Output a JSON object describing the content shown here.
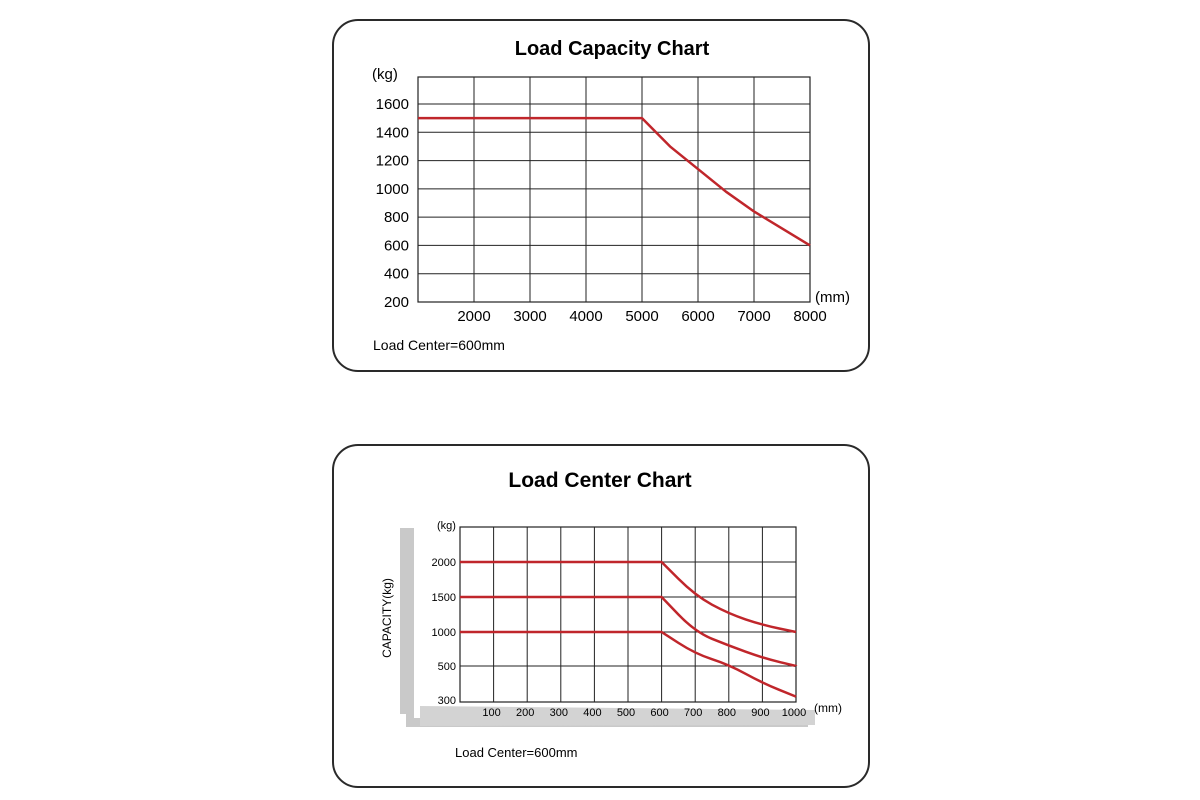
{
  "chart_data": [
    {
      "type": "line",
      "title": "Load Capacity Chart",
      "ylabel": "(kg)",
      "xlabel": "(mm)",
      "note": "Load Center=600mm",
      "x_ticks": [
        2000,
        3000,
        4000,
        5000,
        6000,
        7000,
        8000
      ],
      "y_ticks": [
        200,
        400,
        600,
        800,
        1000,
        1200,
        1400,
        1600
      ],
      "xlim": [
        1000,
        8000
      ],
      "ylim": [
        200,
        1600
      ],
      "grid": true,
      "series": [
        {
          "x": [
            1000,
            5000,
            5500,
            6000,
            6500,
            7000,
            7500,
            8000
          ],
          "y": [
            1500,
            1500,
            1300,
            1140,
            980,
            840,
            720,
            600
          ],
          "color": "#c0262b"
        }
      ]
    },
    {
      "type": "line",
      "title": "Load Center Chart",
      "ylabel": "CAPACITY(kg)",
      "yunit": "(kg)",
      "xlabel": "(mm)",
      "note": "Load Center=600mm",
      "x_ticks": [
        100,
        200,
        300,
        400,
        500,
        600,
        700,
        800,
        900,
        1000
      ],
      "y_ticks": [
        300,
        500,
        1000,
        1500,
        2000
      ],
      "ylim": [
        0,
        5
      ],
      "grid": true,
      "series": [
        {
          "x": [
            0,
            600,
            700,
            800,
            900,
            1000
          ],
          "y": [
            2000,
            2000,
            1520,
            1260,
            1100,
            1000
          ],
          "color": "#c0262b"
        },
        {
          "x": [
            0,
            600,
            700,
            800,
            900,
            1000
          ],
          "y": [
            1500,
            1500,
            1000,
            800,
            620,
            500
          ],
          "color": "#c0262b"
        },
        {
          "x": [
            0,
            600,
            700,
            800,
            900,
            1000
          ],
          "y": [
            1000,
            1000,
            680,
            520,
            400,
            320
          ],
          "color": "#c0262b"
        }
      ]
    }
  ]
}
